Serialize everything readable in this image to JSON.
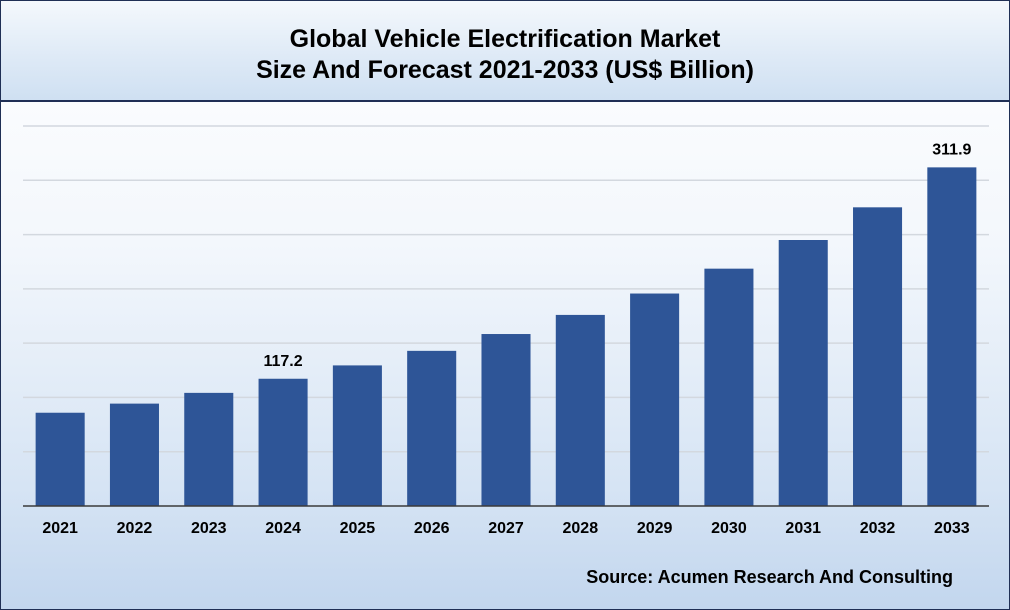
{
  "chart_data": {
    "type": "bar",
    "title_line1": "Global Vehicle Electrification Market",
    "title_line2": "Size And Forecast 2021-2033 (US$ Billion)",
    "categories": [
      "2021",
      "2022",
      "2023",
      "2024",
      "2025",
      "2026",
      "2027",
      "2028",
      "2029",
      "2030",
      "2031",
      "2032",
      "2033"
    ],
    "values": [
      85.9,
      94.3,
      104.2,
      117.2,
      129.5,
      142.9,
      158.4,
      176.0,
      195.7,
      218.6,
      245.0,
      275.1,
      311.9
    ],
    "data_labels": [
      {
        "index": 3,
        "text": "117.2"
      },
      {
        "index": 12,
        "text": "311.9"
      }
    ],
    "ylim": [
      0,
      350
    ],
    "gridlines": true,
    "y_axis_labels_visible": false,
    "bar_color": "#2e5597",
    "source": "Source: Acumen Research And Consulting"
  }
}
